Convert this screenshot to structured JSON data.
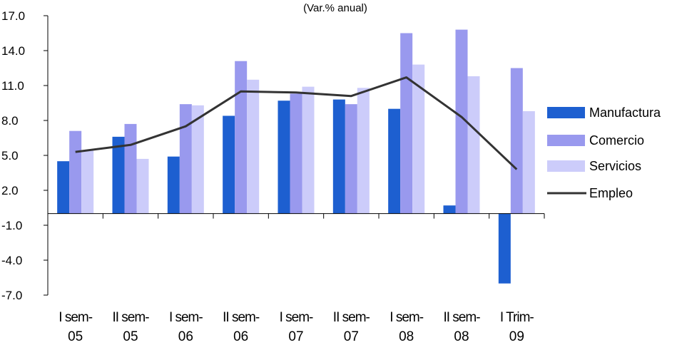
{
  "chart_data": {
    "type": "bar",
    "subtitle": "(Var.% anual)",
    "categories": [
      [
        "I sem-",
        "05"
      ],
      [
        "II sem-",
        "05"
      ],
      [
        "I sem-",
        "06"
      ],
      [
        "II sem-",
        "06"
      ],
      [
        "I sem-",
        "07"
      ],
      [
        "II sem-",
        "07"
      ],
      [
        "I sem-",
        "08"
      ],
      [
        "II sem-",
        "08"
      ],
      [
        "I Trim-",
        "09"
      ]
    ],
    "yticks": [
      "17.0",
      "14.0",
      "11.0",
      "8.0",
      "5.0",
      "2.0",
      "-1.0",
      "-4.0",
      "-7.0"
    ],
    "ylim": [
      -7,
      17
    ],
    "baseline": 0,
    "grid": false,
    "legend_position": "right",
    "series": [
      {
        "name": "Manufactura",
        "kind": "bar",
        "color": "#1d5fd0",
        "values": [
          4.5,
          6.6,
          4.9,
          8.4,
          9.7,
          9.8,
          9.0,
          0.7,
          -6.0
        ]
      },
      {
        "name": "Comercio",
        "kind": "bar",
        "color": "#9999ee",
        "values": [
          7.1,
          7.7,
          9.4,
          13.1,
          10.3,
          9.4,
          15.5,
          15.8,
          12.5
        ]
      },
      {
        "name": "Servicios",
        "kind": "bar",
        "color": "#ccccfa",
        "values": [
          5.4,
          4.7,
          9.3,
          11.5,
          10.9,
          10.8,
          12.8,
          11.8,
          8.8
        ]
      },
      {
        "name": "Empleo",
        "kind": "line",
        "color": "#333333",
        "values": [
          5.3,
          5.9,
          7.5,
          10.5,
          10.4,
          10.1,
          11.7,
          8.3,
          3.8
        ]
      }
    ]
  }
}
